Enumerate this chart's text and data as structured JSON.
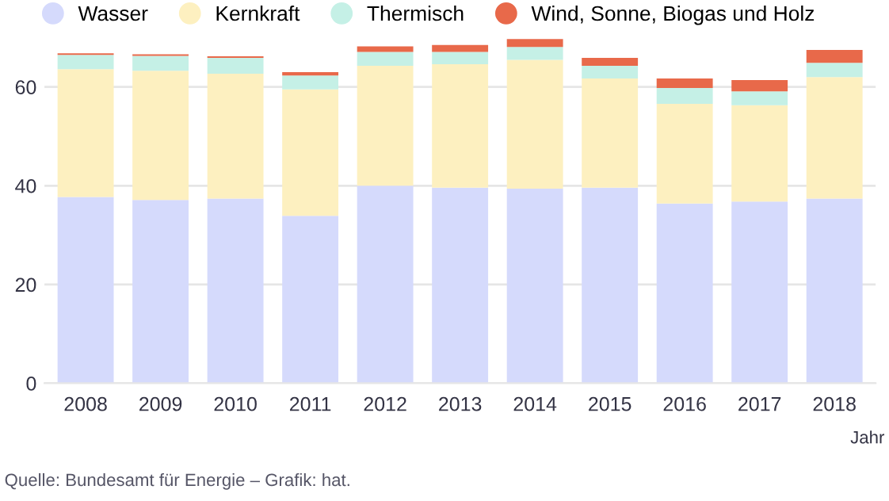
{
  "chart_data": {
    "type": "bar",
    "stacked": true,
    "xlabel": "Jahr",
    "categories": [
      "2008",
      "2009",
      "2010",
      "2011",
      "2012",
      "2013",
      "2014",
      "2015",
      "2016",
      "2017",
      "2018"
    ],
    "series": [
      {
        "name": "Wasser",
        "color": "#d5dafc",
        "values": [
          37.7,
          37.1,
          37.4,
          33.9,
          40.0,
          39.6,
          39.4,
          39.6,
          36.4,
          36.8,
          37.4
        ]
      },
      {
        "name": "Kernkraft",
        "color": "#fdf0c0",
        "values": [
          25.9,
          26.2,
          25.3,
          25.6,
          24.3,
          25.0,
          26.1,
          22.1,
          20.2,
          19.5,
          24.6
        ]
      },
      {
        "name": "Thermisch",
        "color": "#c5f0e6",
        "values": [
          2.9,
          3.0,
          3.2,
          2.8,
          2.8,
          2.5,
          2.6,
          2.6,
          3.2,
          2.8,
          2.9
        ]
      },
      {
        "name": "Wind, Sonne, Biogas und Holz",
        "color": "#e8694a",
        "values": [
          0.3,
          0.3,
          0.3,
          0.7,
          1.1,
          1.4,
          1.6,
          1.6,
          1.9,
          2.3,
          2.6
        ]
      }
    ],
    "ylim": [
      0,
      70
    ],
    "yticks": [
      0,
      20,
      40,
      60
    ],
    "grid": "y",
    "legend": "top left",
    "annotations": [
      "Quelle: Bundesamt für Energie – Grafik: hat."
    ]
  }
}
